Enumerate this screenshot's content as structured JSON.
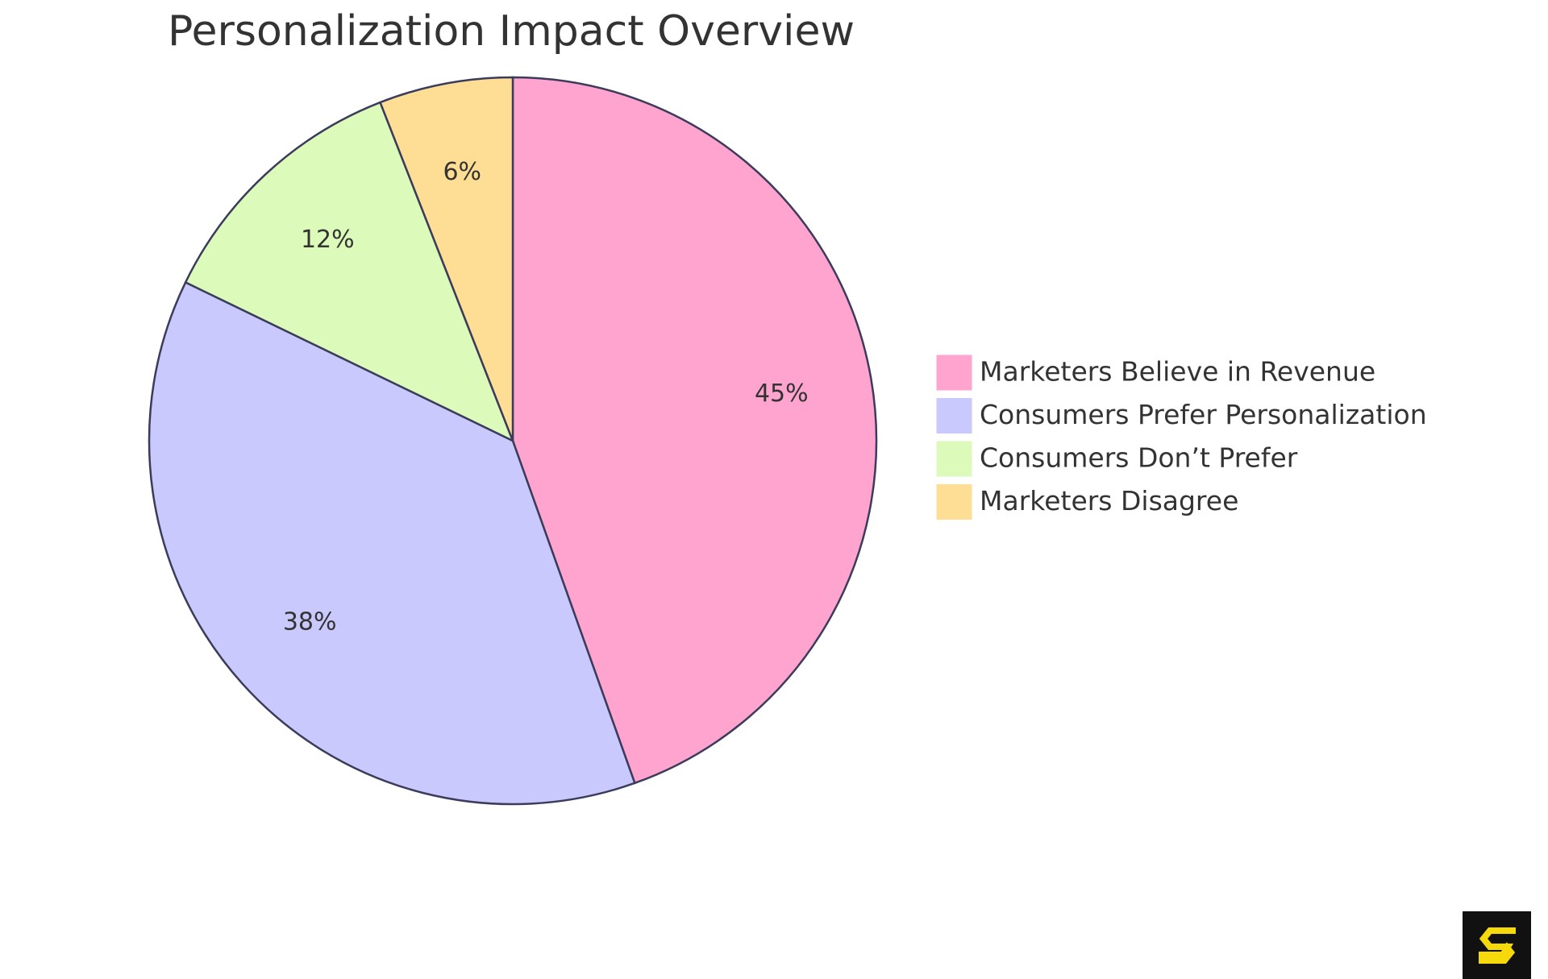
{
  "chart_data": {
    "type": "pie",
    "title": "Personalization Impact Overview",
    "categories": [
      "Marketers Believe in Revenue",
      "Consumers Prefer Personalization",
      "Consumers Don’t Prefer",
      "Marketers Disagree"
    ],
    "values": [
      45,
      38,
      12,
      6
    ],
    "value_labels": [
      "45%",
      "38%",
      "12%",
      "6%"
    ],
    "colors": [
      "#ffa3cf",
      "#c9c9fd",
      "#dcfab9",
      "#fede94"
    ]
  }
}
